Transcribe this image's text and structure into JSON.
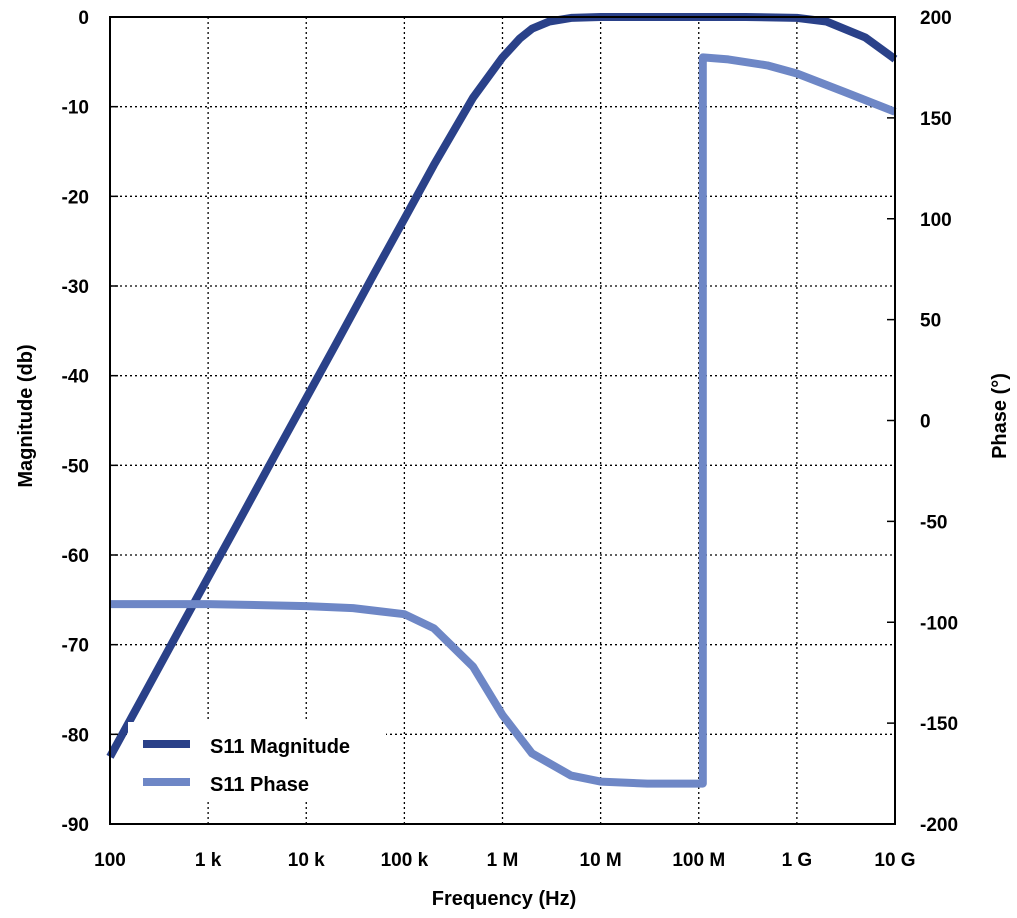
{
  "chart_data": {
    "type": "line",
    "title": "",
    "xlabel": "Frequency (Hz)",
    "ylabel_left": "Magnitude (db)",
    "ylabel_right": "Phase (°)",
    "x_scale": "log",
    "xlim": [
      100,
      10000000000
    ],
    "ylim_left": [
      -90,
      0
    ],
    "ylim_right": [
      -200,
      200
    ],
    "grid": true,
    "legend_position": "bottom-left",
    "x_ticks": [
      {
        "value": 100,
        "label": "100"
      },
      {
        "value": 1000,
        "label": "1 k"
      },
      {
        "value": 10000,
        "label": "10 k"
      },
      {
        "value": 100000,
        "label": "100 k"
      },
      {
        "value": 1000000,
        "label": "1 M"
      },
      {
        "value": 10000000,
        "label": "10 M"
      },
      {
        "value": 100000000,
        "label": "100 M"
      },
      {
        "value": 1000000000,
        "label": "1 G"
      },
      {
        "value": 10000000000,
        "label": "10 G"
      }
    ],
    "y_left_ticks": [
      0,
      -10,
      -20,
      -30,
      -40,
      -50,
      -60,
      -70,
      -80,
      -90
    ],
    "y_right_ticks": [
      200,
      150,
      100,
      50,
      0,
      -50,
      -100,
      -150,
      -200
    ],
    "series": [
      {
        "name": "S11 Magnitude",
        "axis": "left",
        "color": "#2a4189",
        "x": [
          100,
          200,
          500,
          1000,
          2000,
          5000,
          10000,
          20000,
          50000,
          100000,
          200000,
          500000,
          1000000,
          1500000,
          2000000,
          3000000,
          5000000,
          10000000,
          30000000,
          100000000,
          300000000,
          1000000000,
          2000000000,
          5000000000,
          10000000000
        ],
        "y": [
          -82.5,
          -76.5,
          -68.5,
          -62.5,
          -56.5,
          -48.5,
          -42.5,
          -36.5,
          -28.5,
          -22.5,
          -16.5,
          -9.0,
          -4.5,
          -2.4,
          -1.3,
          -0.5,
          -0.1,
          0,
          0,
          0,
          0,
          -0.1,
          -0.5,
          -2.3,
          -4.7
        ]
      },
      {
        "name": "S11 Phase",
        "axis": "right",
        "color": "#6e87c6",
        "x": [
          100,
          1000,
          10000,
          30000,
          100000,
          200000,
          500000,
          1000000,
          2000000,
          5000000,
          10000000,
          30000000,
          100000000,
          110000000,
          110000001,
          200000000,
          500000000,
          1000000000,
          3000000000,
          10000000000
        ],
        "y": [
          -91,
          -91,
          -92,
          -93,
          -96,
          -103,
          -122,
          -146,
          -165,
          -176,
          -179,
          -180,
          -180,
          -180,
          180,
          179,
          176,
          172,
          163,
          153
        ]
      }
    ]
  }
}
